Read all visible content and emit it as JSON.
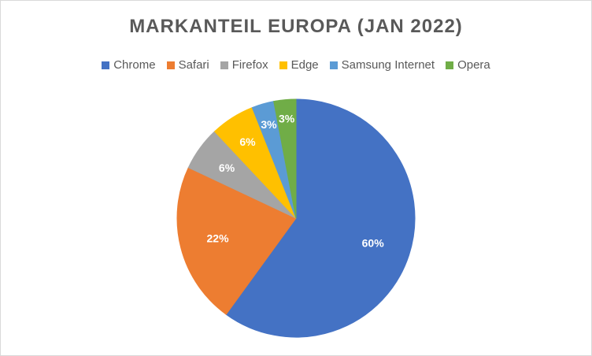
{
  "chart_data": {
    "type": "pie",
    "title": "MARKANTEIL EUROPA (JAN 2022)",
    "legend_position": "top",
    "slices": [
      {
        "label": "Chrome",
        "value": 60,
        "display": "60%",
        "color": "#4472c4"
      },
      {
        "label": "Safari",
        "value": 22,
        "display": "22%",
        "color": "#ed7d31"
      },
      {
        "label": "Firefox",
        "value": 6,
        "display": "6%",
        "color": "#a5a5a5"
      },
      {
        "label": "Edge",
        "value": 6,
        "display": "6%",
        "color": "#ffc000"
      },
      {
        "label": "Samsung Internet",
        "value": 3,
        "display": "3%",
        "color": "#5b9bd5"
      },
      {
        "label": "Opera",
        "value": 3,
        "display": "3%",
        "color": "#70ad47"
      }
    ]
  }
}
